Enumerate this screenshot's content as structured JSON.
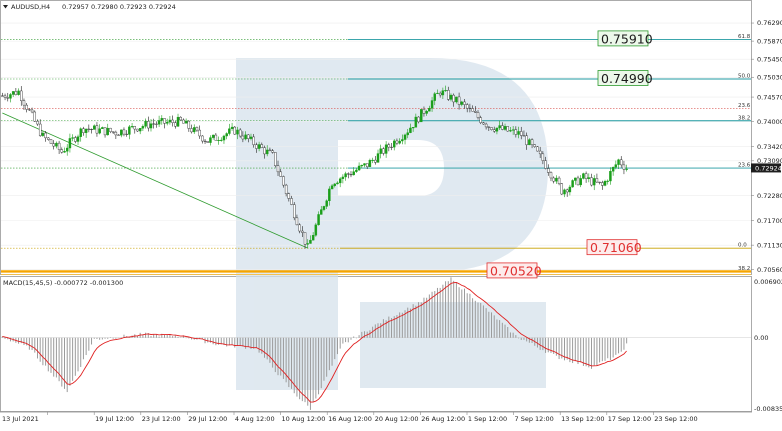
{
  "header": {
    "symbol": "AUDUSD,H4",
    "ohlc": "0.72957 0.72980 0.72923 0.72924"
  },
  "macd": {
    "label": "MACD(15,45,5) -0.000772 -0.001300",
    "axis": [
      "0.006902",
      "0.00",
      "-0.008356"
    ]
  },
  "price_axis": [
    "0.76290",
    "0.75870",
    "0.75450",
    "0.75030",
    "0.74570",
    "0.74000",
    "0.73420",
    "0.73090",
    "0.72280",
    "0.71700",
    "0.71130",
    "0.70560"
  ],
  "current_price": "0.72924",
  "fib_levels": [
    {
      "label": "61.8",
      "price": 0.7591
    },
    {
      "label": "50.0",
      "price": 0.7499
    },
    {
      "label": "23.6",
      "price": 0.7431
    },
    {
      "label": "38.2",
      "price": 0.7402
    },
    {
      "label": "23.6",
      "price": 0.7292
    },
    {
      "label": "0.0",
      "price": 0.7106
    },
    {
      "label": "38.2",
      "price": 0.7052
    }
  ],
  "target_labels": [
    {
      "text": "0.75910",
      "kind": "green"
    },
    {
      "text": "0.74990",
      "kind": "green"
    },
    {
      "text": "0.71060",
      "kind": "red"
    },
    {
      "text": "0.70520",
      "kind": "red"
    }
  ],
  "time_axis": [
    "13 Jul 2021",
    "19 Jul 12:00",
    "23 Jul 12:00",
    "29 Jul 12:00",
    "4 Aug 12:00",
    "10 Aug 12:00",
    "16 Aug 12:00",
    "20 Aug 12:00",
    "26 Aug 12:00",
    "1 Sep 12:00",
    "7 Sep 12:00",
    "13 Sep 12:00",
    "17 Sep 12:00",
    "23 Sep 12:00"
  ],
  "colors": {
    "bull": "#1a9e1a",
    "bear": "#222222",
    "teal": "#1f9aa0",
    "fib_green": "#2e9b2e",
    "fib_orange": "#f5a500",
    "label_red": "#e03030",
    "macd_signal": "#e02020",
    "macd_hist": "#9a9a9a"
  },
  "chart_data": {
    "type": "candlestick",
    "symbol": "AUDUSD",
    "timeframe": "H4",
    "ylim": [
      0.7046,
      0.765
    ],
    "path_keypoints": [
      {
        "bar": 0,
        "price": 0.746
      },
      {
        "bar": 6,
        "price": 0.747
      },
      {
        "bar": 15,
        "price": 0.7365
      },
      {
        "bar": 22,
        "price": 0.733
      },
      {
        "bar": 30,
        "price": 0.7385
      },
      {
        "bar": 42,
        "price": 0.7375
      },
      {
        "bar": 55,
        "price": 0.7395
      },
      {
        "bar": 66,
        "price": 0.74
      },
      {
        "bar": 76,
        "price": 0.7355
      },
      {
        "bar": 86,
        "price": 0.738
      },
      {
        "bar": 100,
        "price": 0.732
      },
      {
        "bar": 106,
        "price": 0.722
      },
      {
        "bar": 113,
        "price": 0.7106
      },
      {
        "bar": 122,
        "price": 0.726
      },
      {
        "bar": 135,
        "price": 0.73
      },
      {
        "bar": 150,
        "price": 0.738
      },
      {
        "bar": 162,
        "price": 0.747
      },
      {
        "bar": 170,
        "price": 0.744
      },
      {
        "bar": 180,
        "price": 0.739
      },
      {
        "bar": 192,
        "price": 0.737
      },
      {
        "bar": 200,
        "price": 0.731
      },
      {
        "bar": 207,
        "price": 0.724
      },
      {
        "bar": 215,
        "price": 0.727
      },
      {
        "bar": 222,
        "price": 0.725
      },
      {
        "bar": 228,
        "price": 0.731
      },
      {
        "bar": 231,
        "price": 0.7292
      }
    ],
    "macd_keypoints": [
      {
        "bar": 0,
        "value": 0.0001
      },
      {
        "bar": 10,
        "value": -0.0012
      },
      {
        "bar": 24,
        "value": -0.0062
      },
      {
        "bar": 34,
        "value": -0.0002
      },
      {
        "bar": 52,
        "value": 0.0004
      },
      {
        "bar": 66,
        "value": 0.0002
      },
      {
        "bar": 80,
        "value": -0.0008
      },
      {
        "bar": 94,
        "value": -0.0012
      },
      {
        "bar": 108,
        "value": -0.0064
      },
      {
        "bar": 114,
        "value": -0.0082
      },
      {
        "bar": 126,
        "value": -0.0008
      },
      {
        "bar": 140,
        "value": 0.0018
      },
      {
        "bar": 155,
        "value": 0.0042
      },
      {
        "bar": 166,
        "value": 0.0068
      },
      {
        "bar": 176,
        "value": 0.0042
      },
      {
        "bar": 190,
        "value": 0.0002
      },
      {
        "bar": 205,
        "value": -0.0022
      },
      {
        "bar": 218,
        "value": -0.0034
      },
      {
        "bar": 228,
        "value": -0.002
      },
      {
        "bar": 231,
        "value": -0.0008
      }
    ],
    "macd_ylim": [
      -0.008356,
      0.006902
    ],
    "trendline": [
      {
        "bar": 0,
        "price": 0.742
      },
      {
        "bar": 113,
        "price": 0.7106
      }
    ]
  }
}
